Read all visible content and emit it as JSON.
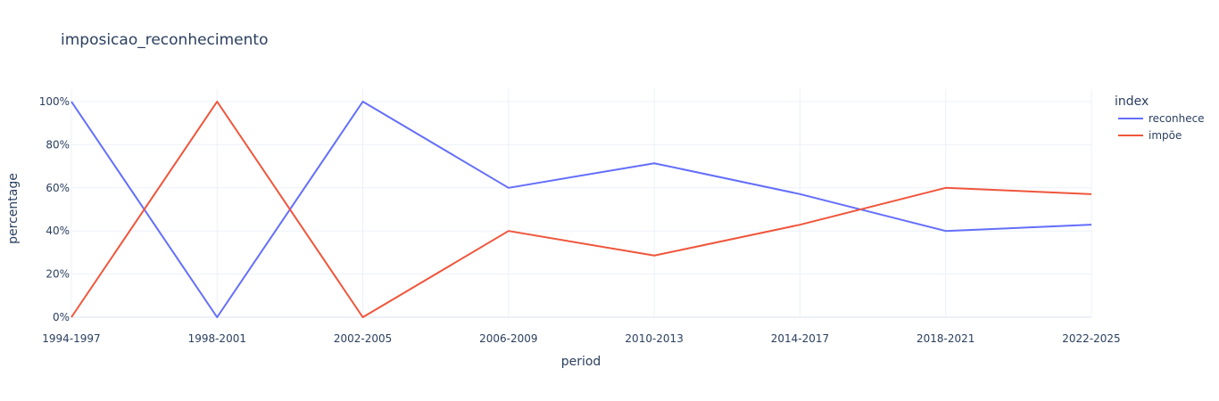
{
  "chart_data": {
    "type": "line",
    "title": "imposicao_reconhecimento",
    "xlabel": "period",
    "ylabel": "percentage",
    "categories": [
      "1994-1997",
      "1998-2001",
      "2002-2005",
      "2006-2009",
      "2010-2013",
      "2014-2017",
      "2018-2021",
      "2022-2025"
    ],
    "y_ticks": [
      "0%",
      "20%",
      "40%",
      "60%",
      "80%",
      "100%"
    ],
    "ylim": [
      0,
      1
    ],
    "grid": true,
    "legend": {
      "title": "index",
      "placement": "top-right"
    },
    "series": [
      {
        "name": "reconhece",
        "color": "#636efa",
        "values": [
          1.0,
          0.0,
          1.0,
          0.6,
          0.714,
          0.571,
          0.4,
          0.429
        ]
      },
      {
        "name": "impõe",
        "color": "#ef553b",
        "values": [
          0.0,
          1.0,
          0.0,
          0.4,
          0.286,
          0.429,
          0.6,
          0.571
        ]
      }
    ]
  }
}
